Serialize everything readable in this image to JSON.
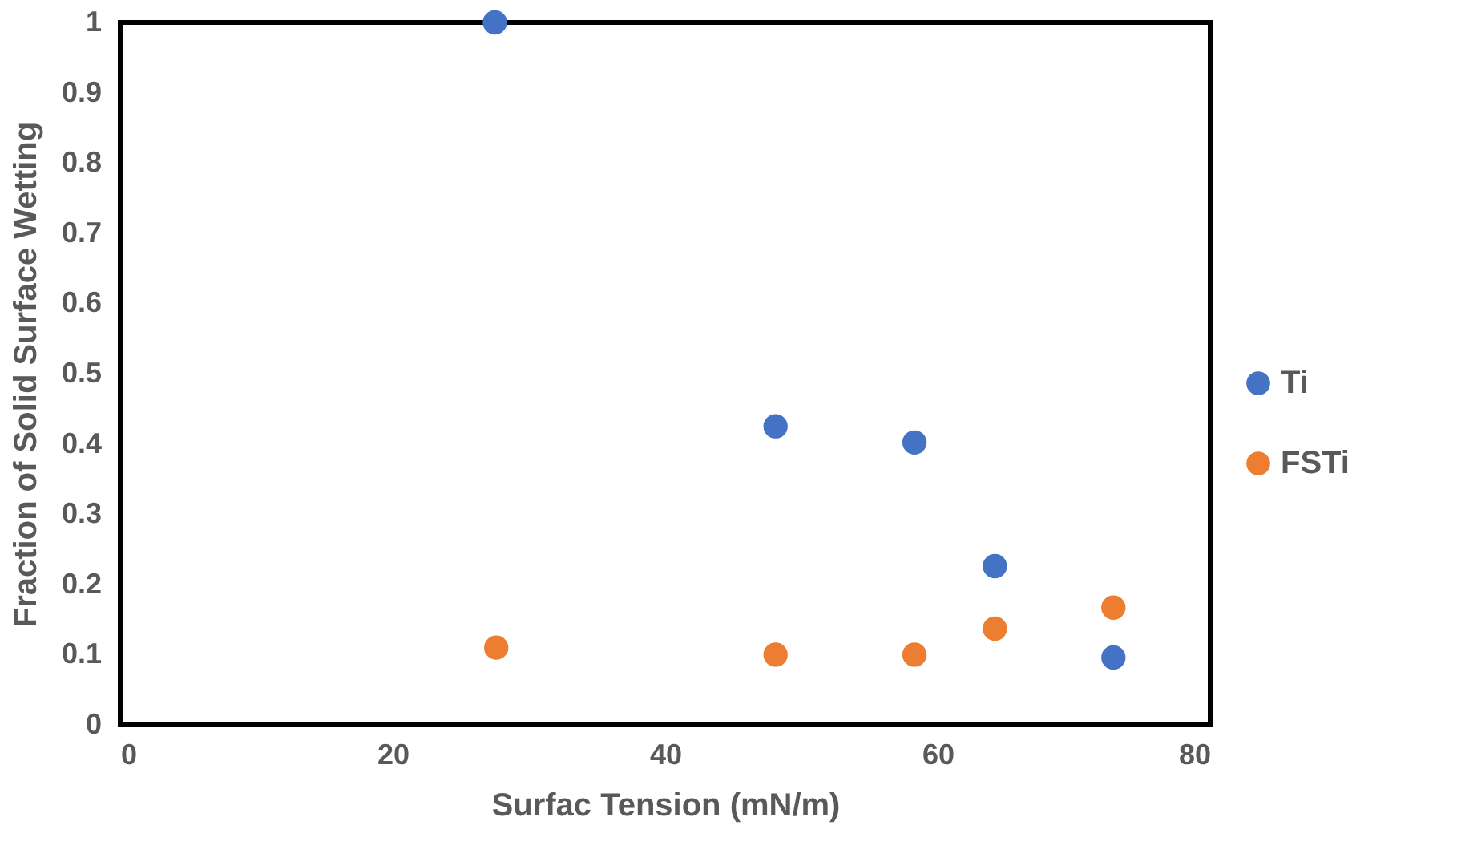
{
  "chart_data": {
    "type": "scatter",
    "xlabel": "Surfac Tension (mN/m)",
    "ylabel": "Fraction of Solid Surface Wetting",
    "series": [
      {
        "name": "Ti",
        "color": "#4472c4",
        "x": [
          27.5,
          48.1,
          58.3,
          64.2,
          72.9
        ],
        "values": [
          1.0,
          0.425,
          0.402,
          0.226,
          0.096
        ]
      },
      {
        "name": "FSTi",
        "color": "#ed7d31",
        "x": [
          27.6,
          48.1,
          58.3,
          64.2,
          72.9
        ],
        "values": [
          0.11,
          0.1,
          0.1,
          0.137,
          0.167
        ]
      }
    ],
    "xlim": [
      0,
      80
    ],
    "xticks": [
      0,
      20,
      40,
      60,
      80
    ],
    "ylim": [
      0,
      1
    ],
    "yticks": [
      0,
      0.1,
      0.2,
      0.3,
      0.4,
      0.5,
      0.6,
      0.7,
      0.8,
      0.9,
      1
    ],
    "grid": false,
    "legend": "right",
    "marker": "circle"
  }
}
